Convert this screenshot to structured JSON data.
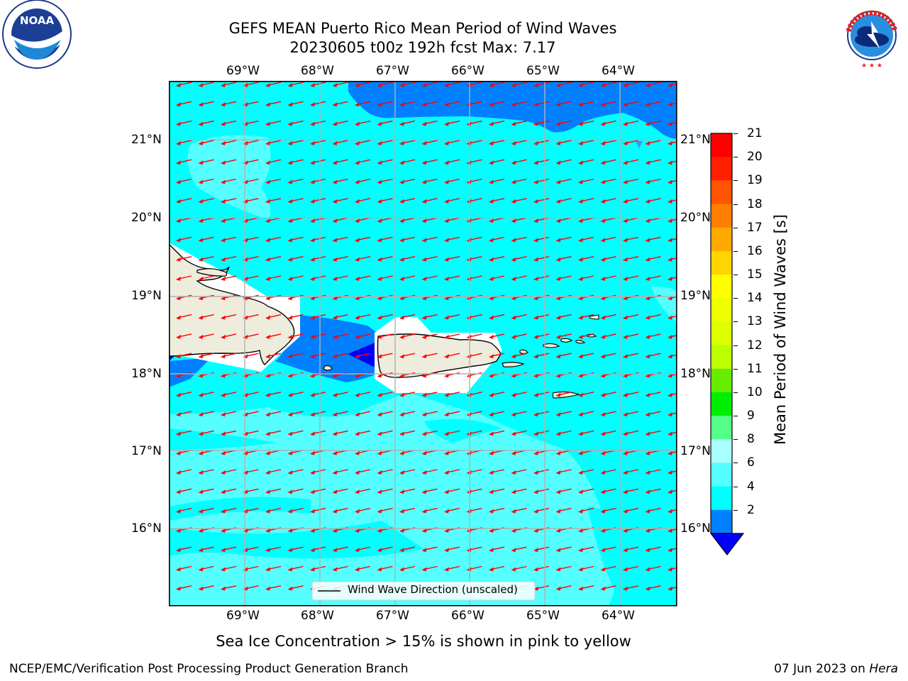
{
  "title": {
    "line1": "GEFS MEAN Puerto Rico Mean Period of Wind Waves",
    "line2": "20230605 t00z 192h fcst   Max: 7.17"
  },
  "logos": {
    "left": "NOAA",
    "right": "NATIONAL WEATHER SERVICE"
  },
  "map": {
    "lon_labels": [
      "69°W",
      "68°W",
      "67°W",
      "66°W",
      "65°W",
      "64°W"
    ],
    "lat_labels": [
      "21°N",
      "20°N",
      "19°N",
      "18°N",
      "17°N",
      "16°N"
    ],
    "legend": "Wind Wave Direction (unscaled)",
    "colors": {
      "land": "#eeecdc",
      "sea_main": "#00ffff",
      "sea_light": "#55ffff",
      "sea_blue": "#0080ff",
      "sea_dark": "#0000f0",
      "arrow": "#ff0000"
    }
  },
  "colorbar": {
    "label": "Mean Period of Wind Waves [s]",
    "ticks": [
      "21",
      "20",
      "19",
      "18",
      "17",
      "16",
      "15",
      "14",
      "13",
      "12",
      "11",
      "10",
      "9",
      "8",
      "6",
      "4",
      "2"
    ],
    "colors": [
      "#ff0000",
      "#ff2000",
      "#ff5500",
      "#ff8000",
      "#ffaa00",
      "#ffd400",
      "#ffff00",
      "#eeff00",
      "#ddff00",
      "#bbff00",
      "#66ee00",
      "#00ee00",
      "#55ff88",
      "#aaffff",
      "#55ffff",
      "#00ffff",
      "#0080ff"
    ],
    "extend_color": "#0000ff"
  },
  "caption": "Sea Ice Concentration > 15% is shown in pink to yellow",
  "footer": {
    "left": "NCEP/EMC/Verification Post Processing Product Generation Branch",
    "right_date": "07 Jun 2023 on ",
    "right_machine": "Hera"
  }
}
